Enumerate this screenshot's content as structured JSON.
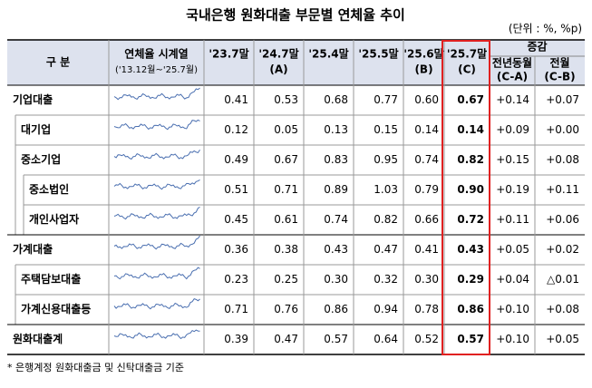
{
  "title": "국내은행 원화대출 부문별 연체율 추이",
  "unit": "(단위 : %, %p)",
  "header": {
    "category": "구  분",
    "series": [
      "연체율 시계열",
      "('13.12월~'25.7월)"
    ],
    "columns": [
      [
        "'23.7말"
      ],
      [
        "'24.7말",
        "(A)"
      ],
      [
        "'25.4말"
      ],
      [
        "'25.5말"
      ],
      [
        "'25.6말",
        "(B)"
      ],
      [
        "'25.7말",
        "(C)"
      ]
    ],
    "change_group": "증감",
    "change": [
      [
        "전년동월",
        "(C-A)"
      ],
      [
        "전월",
        "(C-B)"
      ]
    ]
  },
  "table": {
    "rows": [
      {
        "label": "기업대출",
        "cells": [
          "0.41",
          "0.53",
          "0.68",
          "0.77",
          "0.60",
          "0.67",
          "+0.14",
          "+0.07"
        ]
      },
      {
        "label": "대기업",
        "cells": [
          "0.12",
          "0.05",
          "0.13",
          "0.15",
          "0.14",
          "0.14",
          "+0.09",
          "+0.00"
        ]
      },
      {
        "label": "중소기업",
        "cells": [
          "0.49",
          "0.67",
          "0.83",
          "0.95",
          "0.74",
          "0.82",
          "+0.15",
          "+0.08"
        ]
      },
      {
        "label": "중소법인",
        "cells": [
          "0.51",
          "0.71",
          "0.89",
          "1.03",
          "0.79",
          "0.90",
          "+0.19",
          "+0.11"
        ]
      },
      {
        "label": "개인사업자",
        "cells": [
          "0.45",
          "0.61",
          "0.74",
          "0.82",
          "0.66",
          "0.72",
          "+0.11",
          "+0.06"
        ]
      },
      {
        "label": "가계대출",
        "cells": [
          "0.36",
          "0.38",
          "0.43",
          "0.47",
          "0.41",
          "0.43",
          "+0.05",
          "+0.02"
        ]
      },
      {
        "label": "주택담보대출",
        "cells": [
          "0.23",
          "0.25",
          "0.30",
          "0.32",
          "0.30",
          "0.29",
          "+0.04",
          "△0.01"
        ]
      },
      {
        "label": "가계신용대출등",
        "cells": [
          "0.71",
          "0.76",
          "0.86",
          "0.94",
          "0.78",
          "0.86",
          "+0.10",
          "+0.08"
        ]
      },
      {
        "label": "원화대출계",
        "cells": [
          "0.39",
          "0.47",
          "0.57",
          "0.64",
          "0.52",
          "0.57",
          "+0.10",
          "+0.05"
        ]
      }
    ]
  },
  "footnote": "* 은행계정 원화대출금 및 신탁대출금 기준"
}
